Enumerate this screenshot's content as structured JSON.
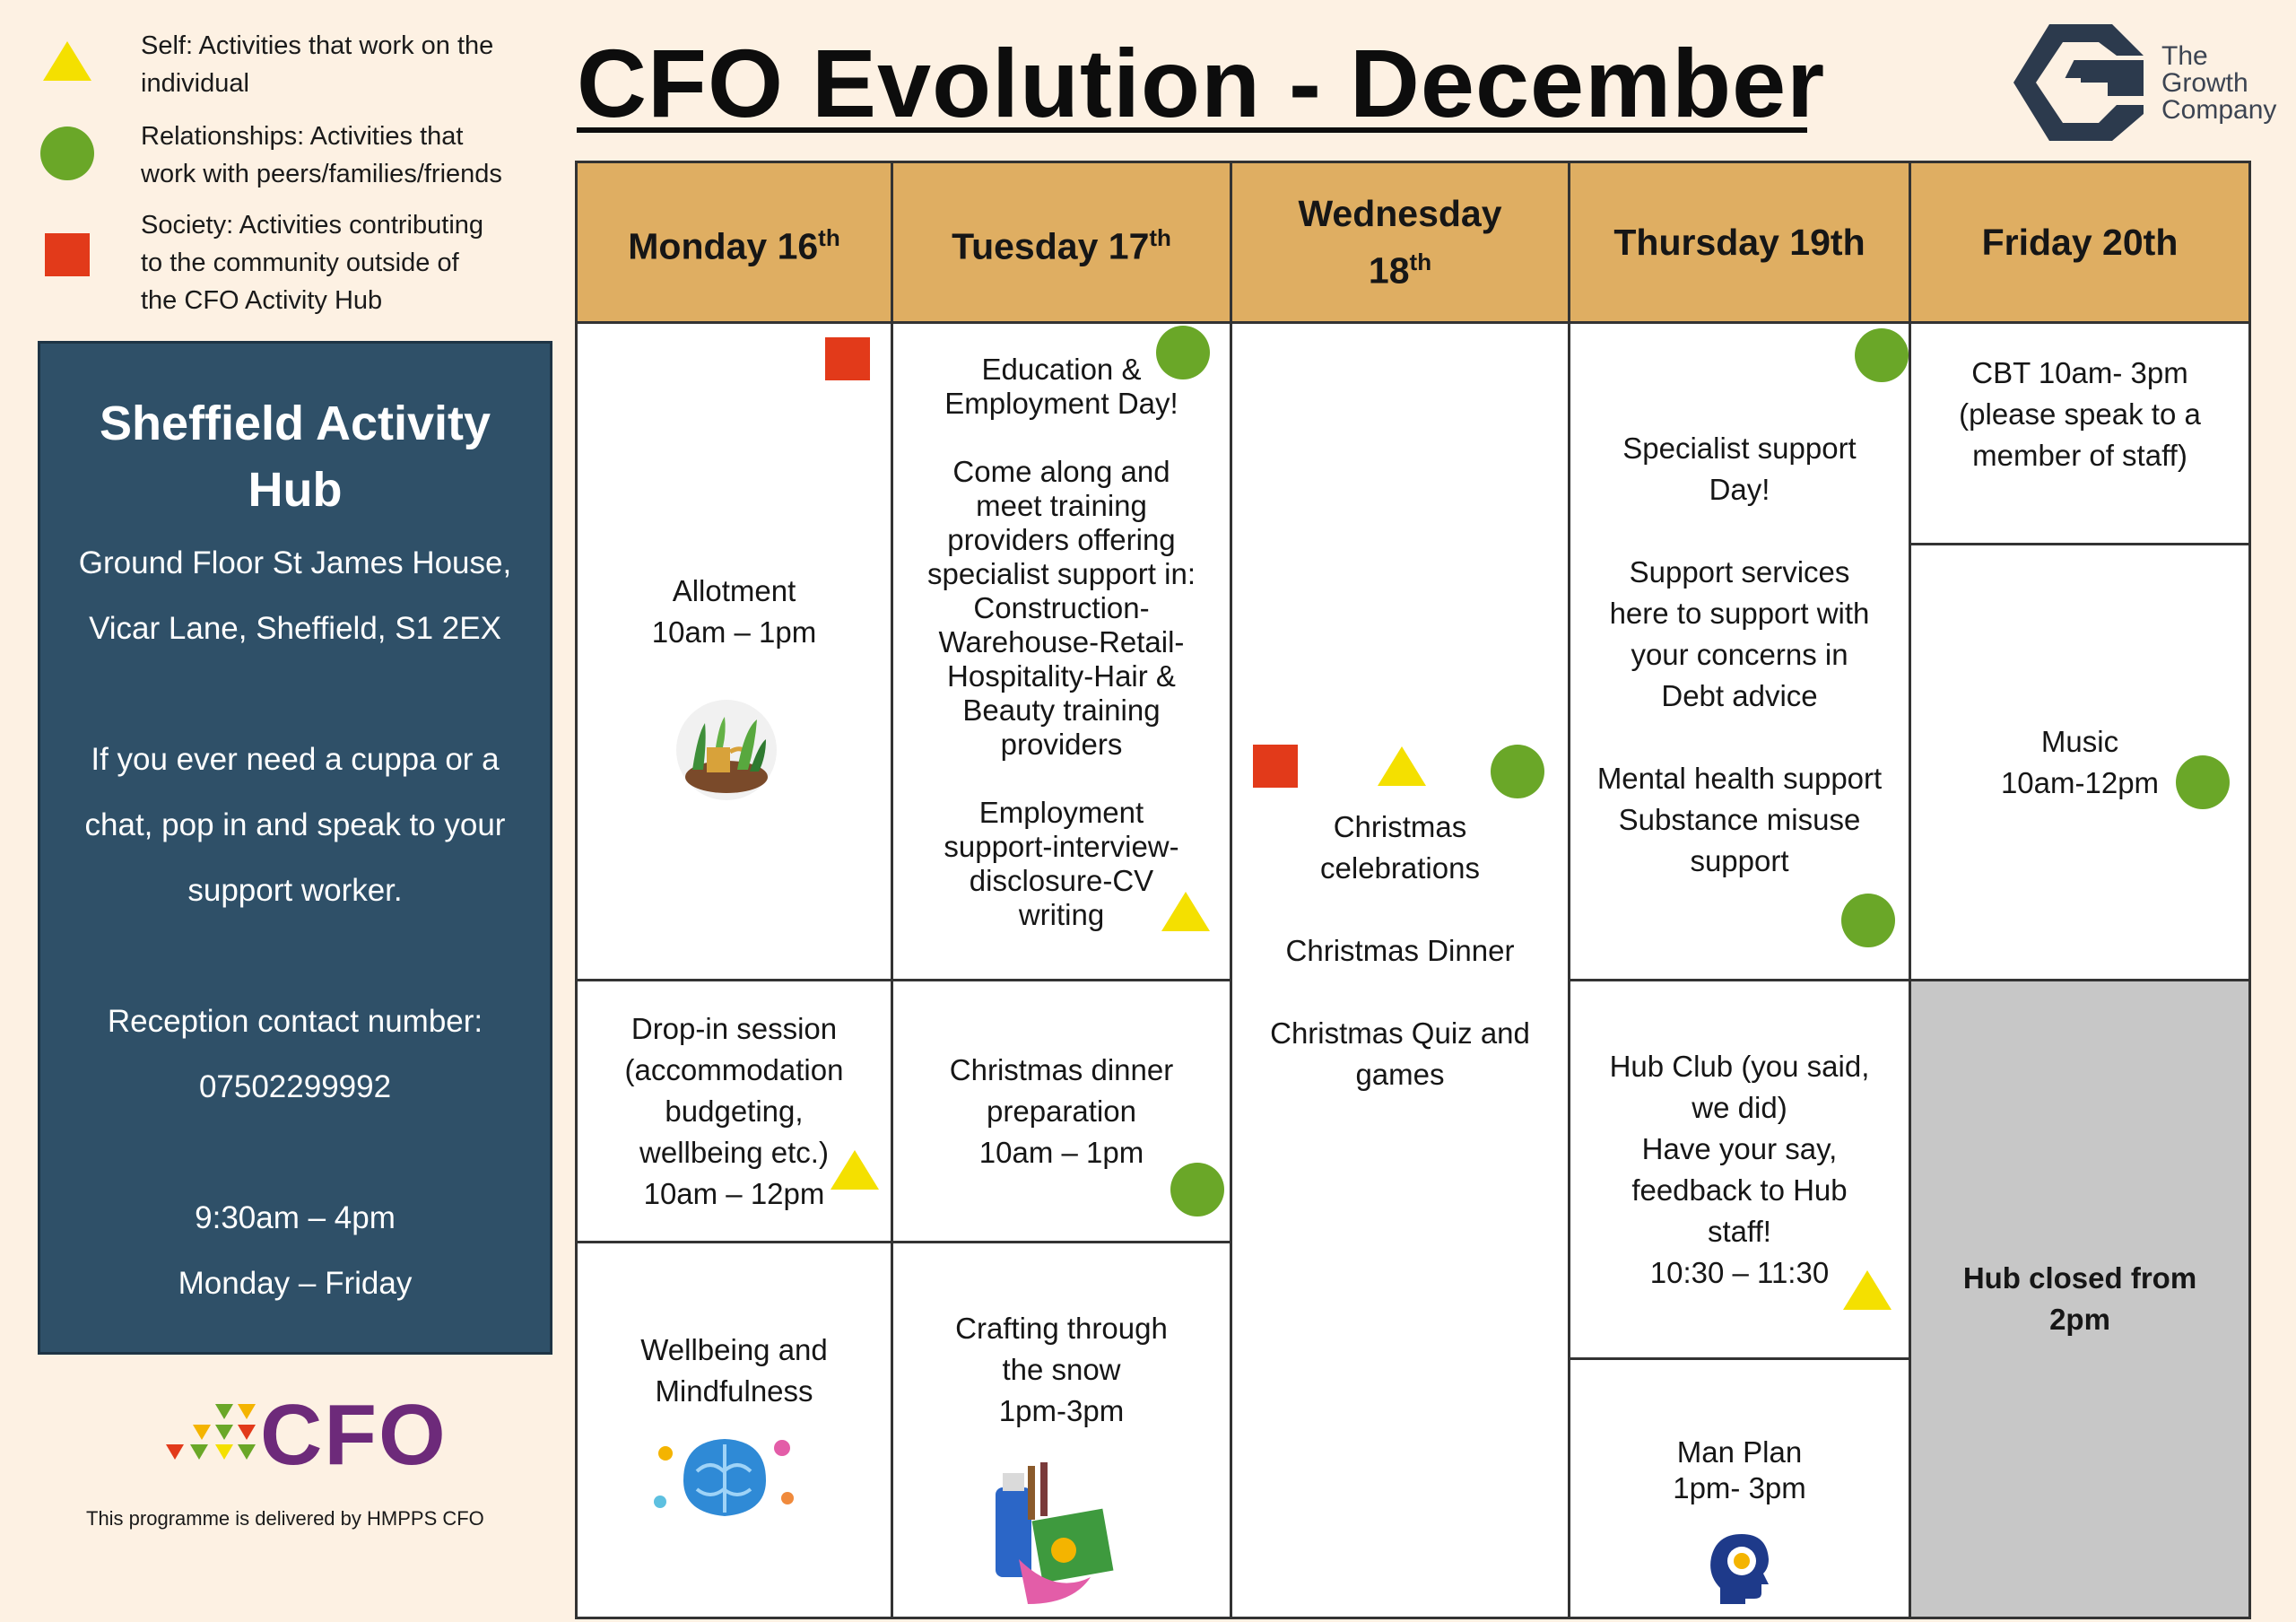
{
  "legend": {
    "self": "Self: Activities that work on the\nindividual",
    "relationships": "Relationships: Activities that\nwork with peers/families/friends",
    "society": "Society: Activities contributing\nto the community outside of\nthe CFO Activity Hub"
  },
  "info": {
    "title_line1": "Sheffield Activity",
    "title_line2": "Hub",
    "address_line1": "Ground Floor St James House,",
    "address_line2": "Vicar Lane, Sheffield, S1 2EX",
    "cuppa_line1": "If you ever need a cuppa or a",
    "cuppa_line2": "chat, pop in and speak to your",
    "cuppa_line3": "support worker.",
    "reception_label": "Reception contact number:",
    "reception_number": "07502299992",
    "hours": "9:30am – 4pm",
    "days": "Monday – Friday"
  },
  "title": "CFO Evolution - December",
  "logo": {
    "line1": "The",
    "line2": "Growth",
    "line3": "Company",
    "cfo": "CFO"
  },
  "footer_note": "This programme is delivered by HMPPS CFO",
  "headers": {
    "mon": "Monday 16",
    "mon_sup": "th",
    "tue": "Tuesday 17",
    "tue_sup": "th",
    "wed_line1": "Wednesday",
    "wed_line2": "18",
    "wed_sup": "th",
    "thu": "Thursday 19th",
    "fri": "Friday 20th"
  },
  "cells": {
    "mon_1": "Allotment\n10am – 1pm",
    "mon_2": "Drop-in session\n(accommodation\nbudgeting,\nwellbeing etc.)\n10am – 12pm",
    "mon_3": "Wellbeing and\nMindfulness",
    "tue_1": "Education &\nEmployment Day!\n\nCome along and\nmeet training\nproviders offering\nspecialist support in:\nConstruction-\nWarehouse-Retail-\nHospitality-Hair &\nBeauty training\nproviders\n\nEmployment\nsupport-interview-\ndisclosure-CV\nwriting",
    "tue_2": "Christmas dinner\npreparation\n10am – 1pm",
    "tue_3": "Crafting through\nthe snow\n1pm-3pm",
    "wed_1": "Christmas\ncelebrations\n\nChristmas Dinner\n\nChristmas Quiz and\ngames",
    "thu_1": "Specialist support\nDay!\n\nSupport services\nhere to support with\nyour concerns in\nDebt advice\n\nMental health support\nSubstance misuse\nsupport",
    "thu_2": "Hub Club (you said,\nwe did)\nHave your say,\nfeedback to Hub\nstaff!\n10:30 – 11:30",
    "thu_3": "Man Plan\n1pm- 3pm",
    "fri_1": "CBT 10am- 3pm\n(please speak to a\nmember of staff)",
    "fri_2": "Music\n10am-12pm",
    "fri_3": "Hub closed from\n2pm"
  },
  "colors": {
    "header_bg": "#dfae62",
    "panel_bg": "#2f5068",
    "self_yellow": "#f4e000",
    "relationships_green": "#6aa728",
    "society_red": "#e23a1a",
    "closed_grey": "#c7c7c7"
  }
}
